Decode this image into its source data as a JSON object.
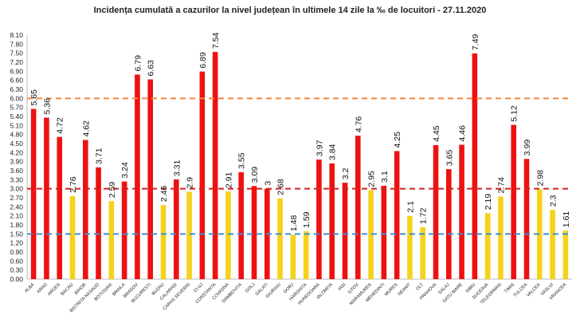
{
  "chart_data": {
    "type": "bar",
    "title": "Incidența cumulată a cazurilor la nivel județean în ultimele 14 zile la ‰ de locuitori - 27.11.2020",
    "xlabel": "",
    "ylabel": "",
    "ylim": [
      0,
      8.1
    ],
    "yticks": [
      "0.00",
      "0.30",
      "0.60",
      "0.90",
      "1.20",
      "1.50",
      "1.80",
      "2.10",
      "2.40",
      "2.70",
      "3.00",
      "3.30",
      "3.60",
      "3.90",
      "4.20",
      "4.50",
      "4.80",
      "5.10",
      "5.40",
      "5.70",
      "6.00",
      "6.30",
      "6.60",
      "6.90",
      "7.20",
      "7.50",
      "7.80",
      "8.10"
    ],
    "grid": false,
    "legend": "none",
    "categories": [
      "ALBA",
      "ARAD",
      "ARGES",
      "BACAU",
      "BIHOR",
      "BISTRITA NASAUD",
      "BOTOSANI",
      "BRAILA",
      "BRASOV",
      "BUCURESTI",
      "BUZAU",
      "CALARASI",
      "CARAS SEVERIN",
      "CLUJ",
      "CONSTANTA",
      "COVASNA",
      "DAMBOVITA",
      "DOLJ",
      "GALATI",
      "GIURGIU",
      "GORJ",
      "HARGHITA",
      "HUNEDOARA",
      "IALOMITA",
      "IASI",
      "ILFOV",
      "MARAMURES",
      "MEHEDINTI",
      "MURES",
      "NEAMT",
      "OLT",
      "PRAHOVA",
      "SALAJ",
      "SATU MARE",
      "SIBIU",
      "SUCEAVA",
      "TELEORMAN",
      "TIMIS",
      "TULCEA",
      "VALCEA",
      "VASLUI",
      "VRANCEA"
    ],
    "values": [
      5.65,
      5.36,
      4.72,
      2.76,
      4.62,
      3.71,
      2.59,
      3.24,
      6.79,
      6.63,
      2.46,
      3.31,
      2.9,
      6.89,
      7.54,
      2.91,
      3.55,
      3.09,
      3.0,
      2.68,
      1.48,
      1.59,
      3.97,
      3.84,
      3.2,
      4.76,
      2.95,
      3.1,
      4.25,
      2.1,
      1.72,
      4.45,
      3.65,
      4.46,
      7.49,
      2.19,
      2.74,
      5.12,
      3.99,
      2.98,
      2.3,
      1.61
    ],
    "value_labels": [
      "5.65",
      "5.36",
      "4.72",
      "2.76",
      "4.62",
      "3.71",
      "2.59",
      "3.24",
      "6.79",
      "6.63",
      "2.46",
      "3.31",
      "2.9",
      "6.89",
      "7.54",
      "2.91",
      "3.55",
      "3.09",
      "3",
      "2.68",
      "1.48",
      "1.59",
      "3.97",
      "3.84",
      "3.2",
      "4.76",
      "2.95",
      "3.1",
      "4.25",
      "2.1",
      "1.72",
      "4.45",
      "3.65",
      "4.46",
      "7.49",
      "2.19",
      "2.74",
      "5.12",
      "3.99",
      "2.98",
      "2.3",
      "1.61"
    ],
    "thresholds": [
      {
        "value": 6.0,
        "color": "#f0883e"
      },
      {
        "value": 3.0,
        "color": "#d22020"
      },
      {
        "value": 1.5,
        "color": "#3a8fd6"
      }
    ],
    "colors": {
      "high": "#ee1111",
      "low": "#f5d21b"
    },
    "color_rule": "red when value >= 3.0, yellow otherwise"
  }
}
